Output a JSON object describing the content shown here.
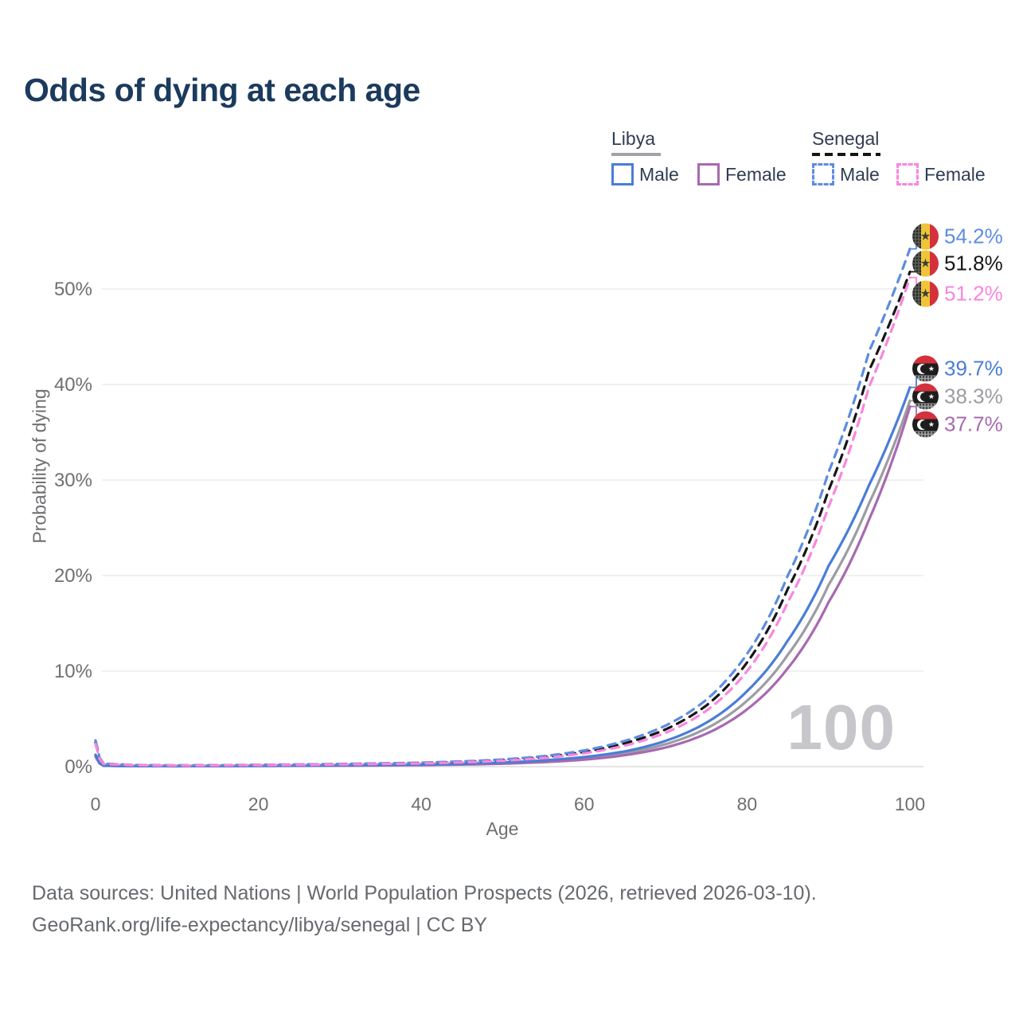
{
  "page": {
    "title": "Odds of dying at each age"
  },
  "legend": {
    "groups": [
      {
        "id": "libya",
        "label": "Libya",
        "line_style": "solid",
        "line_color": "#a3a3a6",
        "items": [
          {
            "id": "libya-male",
            "label": "Male",
            "color": "#4a7dd6",
            "dashed": false
          },
          {
            "id": "libya-female",
            "label": "Female",
            "color": "#a869b0",
            "dashed": false
          }
        ]
      },
      {
        "id": "senegal",
        "label": "Senegal",
        "line_style": "dashed",
        "line_color": "#141414",
        "items": [
          {
            "id": "senegal-male",
            "label": "Male",
            "color": "#5d8ce0",
            "dashed": true
          },
          {
            "id": "senegal-female",
            "label": "Female",
            "color": "#f986dd",
            "dashed": true
          }
        ]
      }
    ]
  },
  "chart_data": {
    "type": "line",
    "title": "Odds of dying at each age",
    "xlabel": "Age",
    "ylabel": "Probability of dying",
    "x_ticks": [
      0,
      20,
      40,
      60,
      80,
      100
    ],
    "y_tick_labels": [
      "0%",
      "10%",
      "20%",
      "30%",
      "40%",
      "50%"
    ],
    "y_tick_percents": [
      0,
      10,
      20,
      30,
      40,
      50
    ],
    "xlim": [
      0,
      100
    ],
    "ylim_percent": [
      0,
      56
    ],
    "grid": "horizontal",
    "sample_ages": [
      0,
      1,
      5,
      10,
      15,
      20,
      25,
      30,
      35,
      40,
      45,
      50,
      55,
      60,
      65,
      70,
      75,
      80,
      85,
      90,
      95,
      100
    ],
    "series": [
      {
        "id": "libya_both",
        "name": "Libya",
        "sex": "both",
        "color": "#9c9ca1",
        "dashed": false,
        "flag": "libya",
        "end_label": "38.3%",
        "values_percent": [
          1.15,
          0.11,
          0.055,
          0.05,
          0.06,
          0.08,
          0.1,
          0.12,
          0.15,
          0.19,
          0.26,
          0.37,
          0.56,
          0.87,
          1.4,
          2.35,
          4.0,
          6.9,
          11.7,
          19.0,
          27.6,
          38.3
        ]
      },
      {
        "id": "libya_female",
        "name": "Libya Female",
        "sex": "female",
        "color": "#a869b0",
        "dashed": false,
        "flag": "libya",
        "end_label": "37.7%",
        "values_percent": [
          1.05,
          0.1,
          0.05,
          0.045,
          0.055,
          0.07,
          0.09,
          0.11,
          0.13,
          0.16,
          0.22,
          0.31,
          0.47,
          0.73,
          1.2,
          2.0,
          3.45,
          6.0,
          10.3,
          17.2,
          25.9,
          37.7
        ]
      },
      {
        "id": "libya_male",
        "name": "Libya Male",
        "sex": "male",
        "color": "#4a7dd6",
        "dashed": false,
        "flag": "libya",
        "end_label": "39.7%",
        "values_percent": [
          1.25,
          0.12,
          0.06,
          0.055,
          0.07,
          0.09,
          0.11,
          0.14,
          0.17,
          0.22,
          0.3,
          0.43,
          0.65,
          1.0,
          1.6,
          2.7,
          4.6,
          7.9,
          13.2,
          21.0,
          29.5,
          39.7
        ]
      },
      {
        "id": "senegal_both",
        "name": "Senegal",
        "sex": "both",
        "color": "#161616",
        "dashed": true,
        "flag": "senegal",
        "end_label": "51.8%",
        "values_percent": [
          2.55,
          0.3,
          0.16,
          0.12,
          0.14,
          0.17,
          0.21,
          0.26,
          0.32,
          0.39,
          0.51,
          0.7,
          1.0,
          1.55,
          2.45,
          3.9,
          6.4,
          10.9,
          18.6,
          28.9,
          41.5,
          51.8
        ]
      },
      {
        "id": "senegal_male",
        "name": "Senegal Male",
        "sex": "male",
        "color": "#5d8ce0",
        "dashed": true,
        "flag": "senegal",
        "end_label": "54.2%",
        "values_percent": [
          2.75,
          0.32,
          0.17,
          0.13,
          0.15,
          0.19,
          0.23,
          0.28,
          0.34,
          0.42,
          0.55,
          0.75,
          1.1,
          1.7,
          2.7,
          4.3,
          7.0,
          11.8,
          20.0,
          30.8,
          43.5,
          54.2
        ]
      },
      {
        "id": "senegal_female",
        "name": "Senegal Female",
        "sex": "female",
        "color": "#f986dd",
        "dashed": true,
        "flag": "senegal",
        "end_label": "51.2%",
        "values_percent": [
          2.35,
          0.28,
          0.15,
          0.11,
          0.13,
          0.16,
          0.19,
          0.23,
          0.28,
          0.34,
          0.45,
          0.62,
          0.9,
          1.4,
          2.2,
          3.55,
          5.85,
          10.0,
          17.2,
          27.2,
          39.8,
          51.2
        ]
      }
    ]
  },
  "watermark": "100",
  "footer": {
    "line1": "Data sources: United Nations | World Population Prospects (2026, retrieved 2026-03-10).",
    "line2": "GeoRank.org/life-expectancy/libya/senegal | CC BY"
  }
}
